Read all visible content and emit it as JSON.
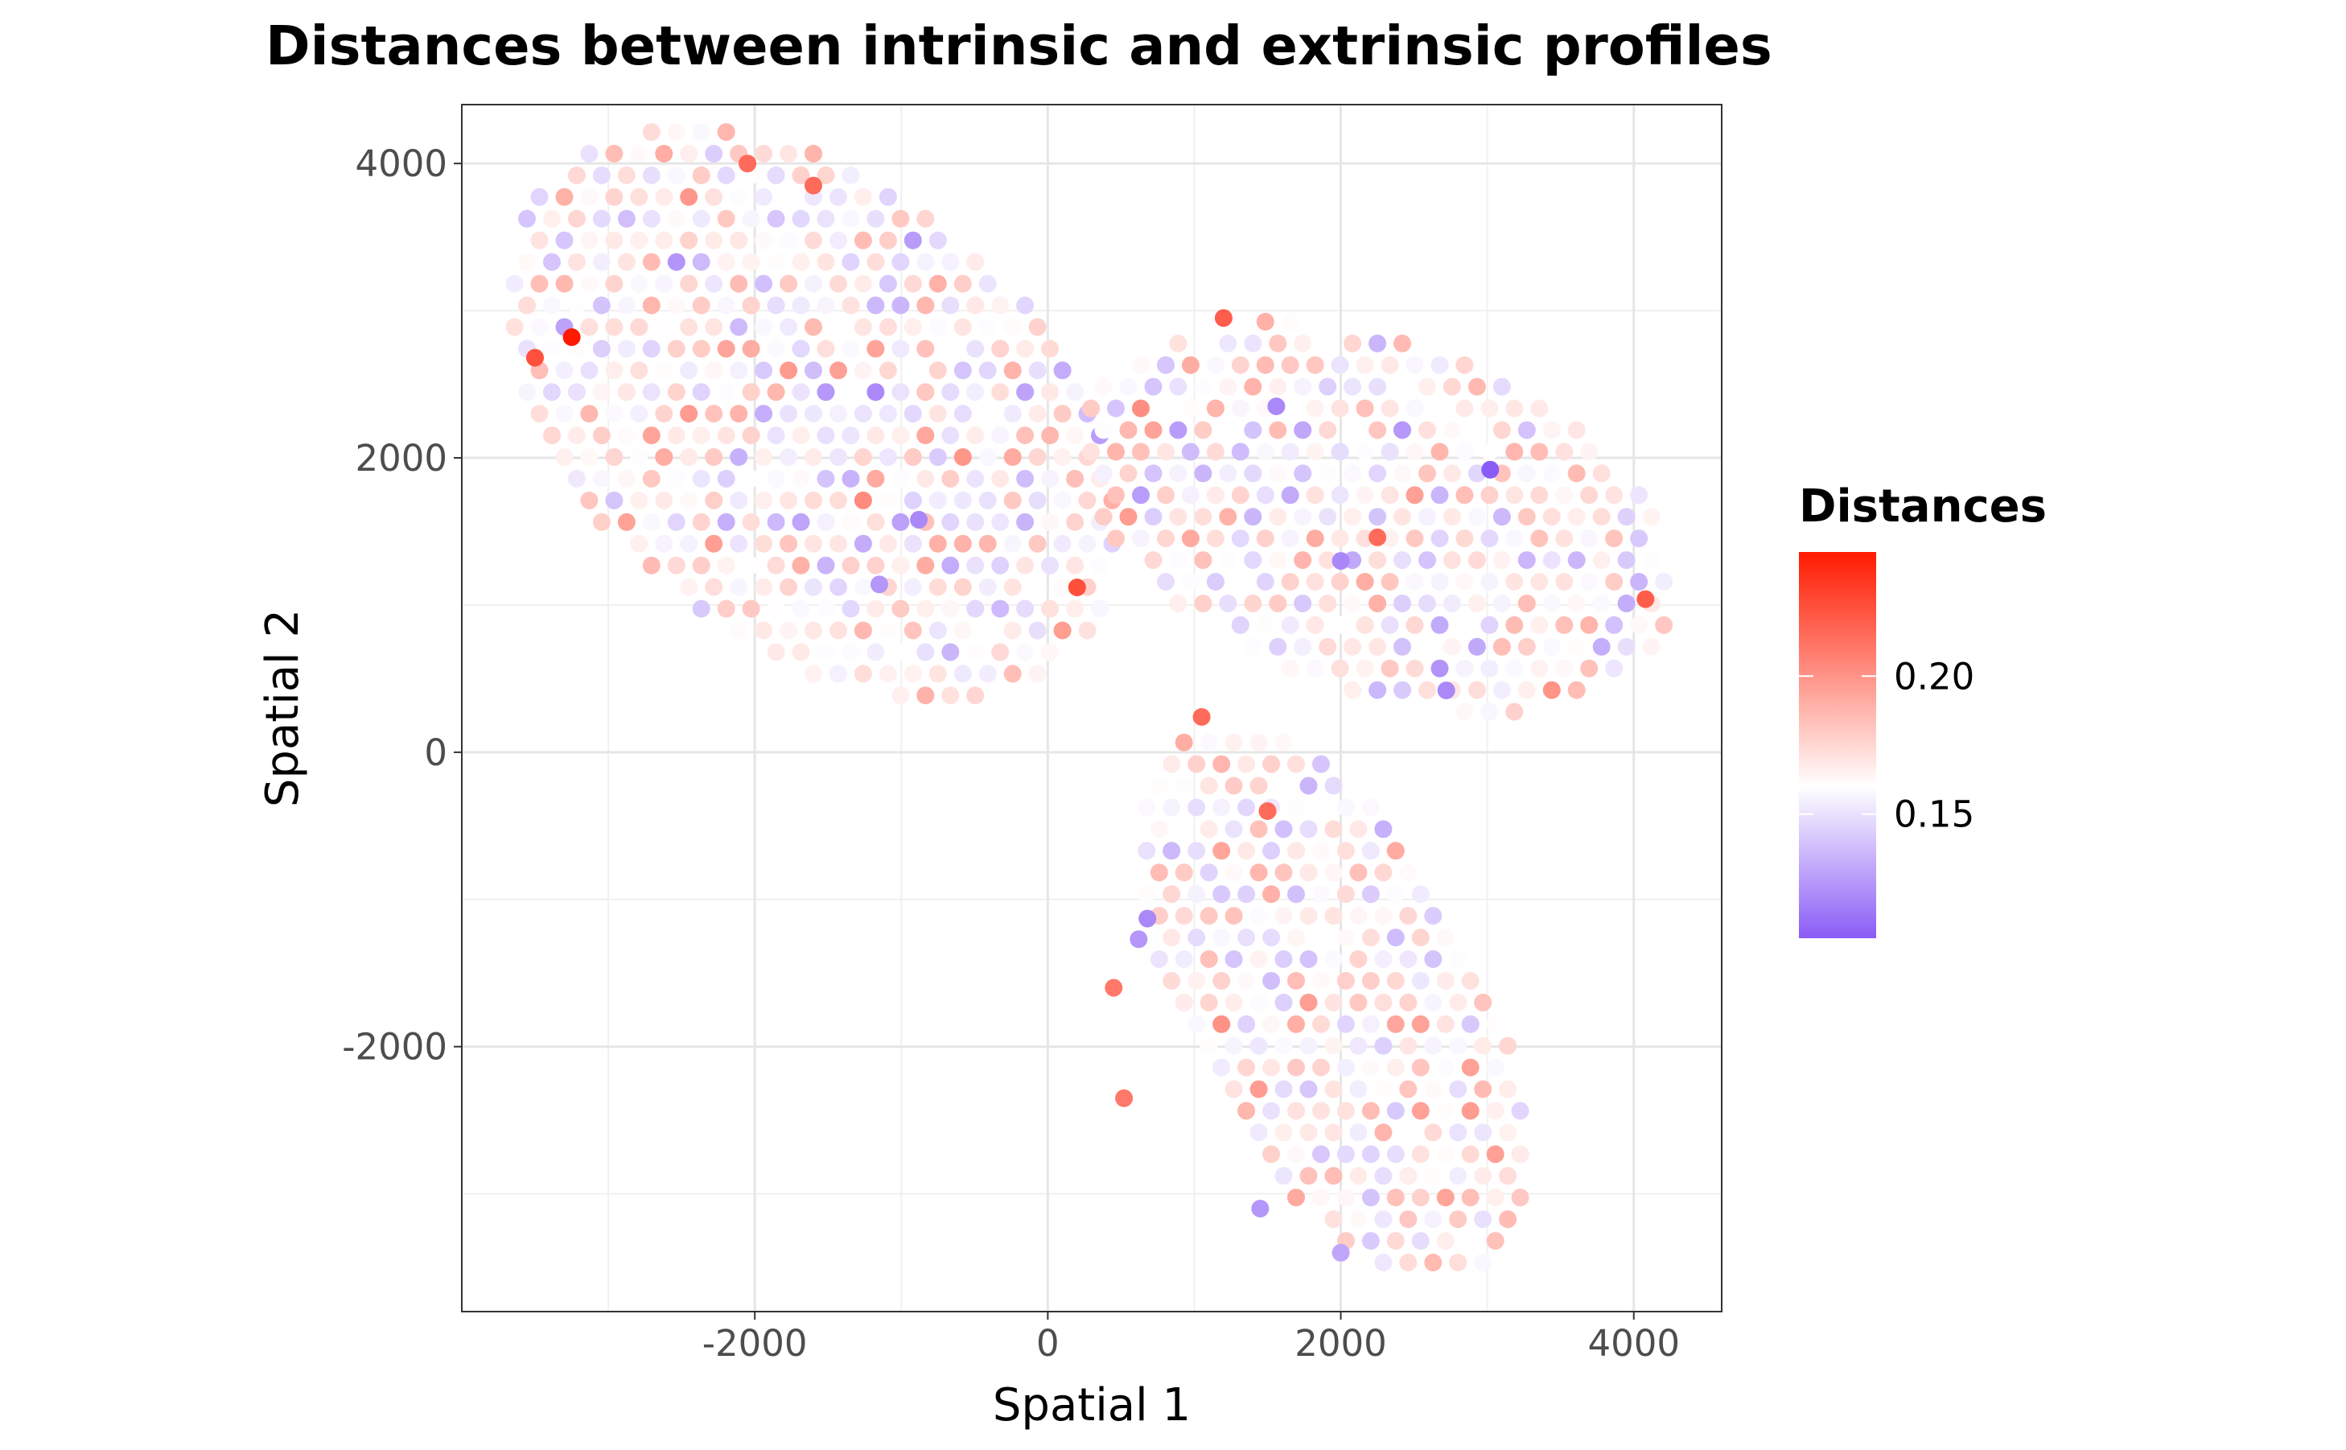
{
  "chart_data": {
    "type": "scatter",
    "title": "Distances between intrinsic and extrinsic profiles",
    "xlabel": "Spatial 1",
    "ylabel": "Spatial 2",
    "xlim": [
      -4000,
      4600
    ],
    "ylim": [
      -3800,
      4400
    ],
    "x_ticks": [
      -2000,
      0,
      2000,
      4000
    ],
    "y_ticks": [
      -2000,
      0,
      2000,
      4000
    ],
    "x_tick_labels": [
      "-2000",
      "0",
      "2000",
      "4000"
    ],
    "y_tick_labels": [
      "-2000",
      "0",
      "2000",
      "4000"
    ],
    "grid": true,
    "legend": {
      "title": "Distances",
      "position": "right",
      "range": [
        0.105,
        0.245
      ],
      "ticks": [
        0.15,
        0.2
      ],
      "tick_labels": [
        "0.15",
        "0.20"
      ]
    },
    "colors": {
      "low": "#8a5cf6",
      "mid": "#ffffff",
      "high": "#ff1a00",
      "midpoint": 0.16
    },
    "clusters": [
      {
        "name": "",
        "center": [
          -1600,
          2300
        ],
        "axis_angle_deg": -40,
        "half_length": 2400,
        "half_width": 1550
      },
      {
        "name": "",
        "center": [
          2250,
          1600
        ],
        "axis_angle_deg": -20,
        "half_length": 2100,
        "half_width": 1200
      },
      {
        "name": "",
        "center": [
          1950,
          -1700
        ],
        "axis_angle_deg": -62,
        "half_length": 2100,
        "half_width": 1000
      }
    ],
    "grid_spacing": 170,
    "highlight_points": [
      {
        "x": -3250,
        "y": 2820,
        "value": 0.245
      },
      {
        "x": -3500,
        "y": 2680,
        "value": 0.225
      },
      {
        "x": -1600,
        "y": 3850,
        "value": 0.215
      },
      {
        "x": -2050,
        "y": 4000,
        "value": 0.215
      },
      {
        "x": 200,
        "y": 1120,
        "value": 0.225
      },
      {
        "x": 1200,
        "y": 2950,
        "value": 0.22
      },
      {
        "x": 4080,
        "y": 1040,
        "value": 0.22
      },
      {
        "x": 1050,
        "y": 240,
        "value": 0.215
      },
      {
        "x": 2250,
        "y": 1460,
        "value": 0.215
      },
      {
        "x": 1500,
        "y": -400,
        "value": 0.215
      },
      {
        "x": 450,
        "y": -1600,
        "value": 0.21
      },
      {
        "x": 520,
        "y": -2350,
        "value": 0.21
      },
      {
        "x": 3020,
        "y": 1920,
        "value": 0.105
      },
      {
        "x": 1560,
        "y": 2350,
        "value": 0.12
      },
      {
        "x": 2000,
        "y": 1300,
        "value": 0.12
      },
      {
        "x": 2720,
        "y": 420,
        "value": 0.12
      },
      {
        "x": -880,
        "y": 1580,
        "value": 0.12
      },
      {
        "x": -1150,
        "y": 1140,
        "value": 0.125
      },
      {
        "x": 680,
        "y": -1130,
        "value": 0.12
      },
      {
        "x": 620,
        "y": -1270,
        "value": 0.125
      },
      {
        "x": 1450,
        "y": -3100,
        "value": 0.125
      },
      {
        "x": 2000,
        "y": -3400,
        "value": 0.13
      }
    ]
  }
}
